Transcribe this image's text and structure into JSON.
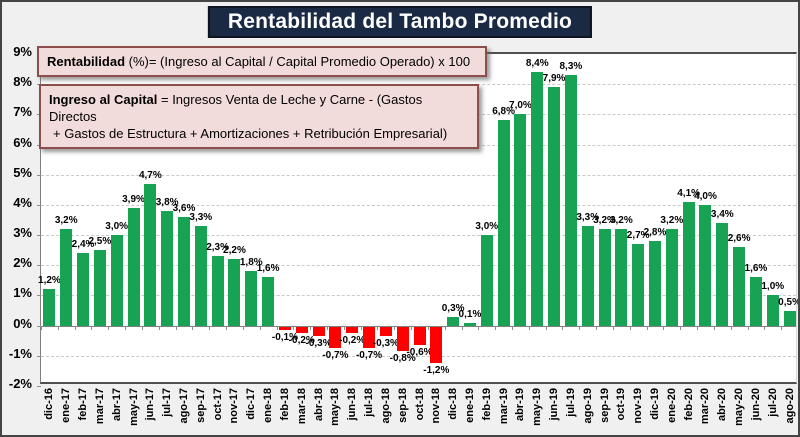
{
  "title": "Rentabilidad del Tambo Promedio",
  "formula_boxes": {
    "box1": {
      "bold": "Rentabilidad",
      "rest": "  (%)= (Ingreso al Capital / Capital Promedio Operado) x 100"
    },
    "box2": {
      "bold": "Ingreso al Capital",
      "rest": " = Ingresos Venta de Leche y Carne  -  (Gastos Directos",
      "line2": "+ Gastos de Estructura  + Amortizaciones  +  Retribución Empresarial)"
    }
  },
  "chart_data": {
    "type": "bar",
    "title": "Rentabilidad del Tambo Promedio",
    "xlabel": "",
    "ylabel": "",
    "ylim": [
      -2,
      9
    ],
    "grid": "horizontal-dashed",
    "legend": "none",
    "value_label_format": "one-decimal-comma-percent",
    "y_tick_labels": [
      "9%",
      "8%",
      "7%",
      "6%",
      "5%",
      "4%",
      "3%",
      "2%",
      "1%",
      "0%",
      "-1%",
      "-2%"
    ],
    "categories": [
      "dic-16",
      "ene-17",
      "feb-17",
      "mar-17",
      "abr-17",
      "may-17",
      "jun-17",
      "jul-17",
      "ago-17",
      "sep-17",
      "oct-17",
      "nov-17",
      "dic-17",
      "ene-18",
      "feb-18",
      "mar-18",
      "abr-18",
      "may-18",
      "jun-18",
      "jul-18",
      "ago-18",
      "sep-18",
      "oct-18",
      "nov-18",
      "dic-18",
      "ene-19",
      "feb-19",
      "mar-19",
      "abr-19",
      "may-19",
      "jun-19",
      "jul-19",
      "ago-19",
      "sep-19",
      "oct-19",
      "nov-19",
      "dic-19",
      "ene-20",
      "feb-20",
      "mar-20",
      "abr-20",
      "may-20",
      "jun-20",
      "jul-20",
      "ago-20"
    ],
    "values": [
      1.2,
      3.2,
      2.4,
      2.5,
      3.0,
      3.9,
      4.7,
      3.8,
      3.6,
      3.3,
      2.3,
      2.2,
      1.8,
      1.6,
      -0.1,
      -0.2,
      -0.3,
      -0.7,
      -0.2,
      -0.7,
      -0.3,
      -0.8,
      -0.6,
      -1.2,
      0.3,
      0.1,
      3.0,
      6.8,
      7.0,
      8.4,
      7.9,
      8.3,
      3.3,
      3.2,
      3.2,
      2.7,
      2.8,
      3.2,
      4.1,
      4.0,
      3.4,
      2.6,
      1.6,
      1.0,
      0.5
    ],
    "colors": {
      "positive_bar": "#17A353",
      "negative_bar": "#FF0000",
      "title_background": "#1B2A44",
      "title_text": "#FFFFFF",
      "formula_box_background": "#F2DCDB",
      "formula_box_border": "#8B4E49",
      "chart_background": "#F0F0F0",
      "plot_background": "#FFFFFF"
    }
  }
}
